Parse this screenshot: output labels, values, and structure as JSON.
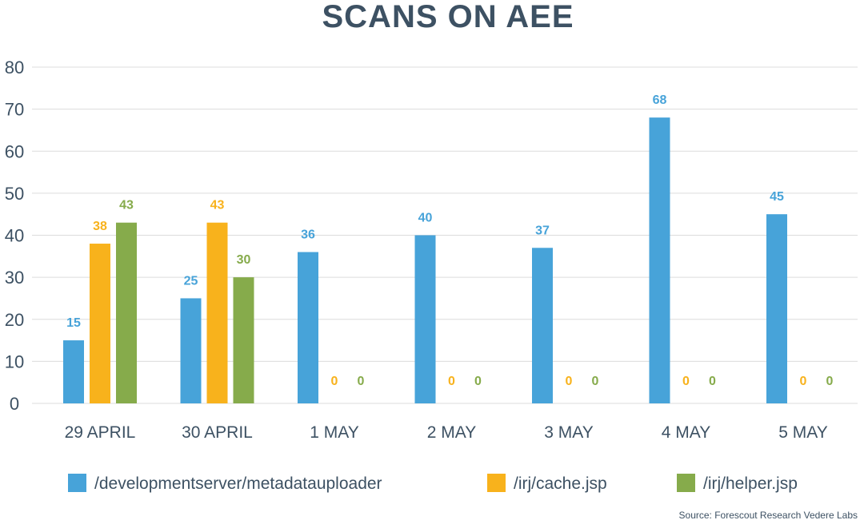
{
  "chart_data": {
    "type": "bar",
    "title": "SCANS ON AEE",
    "categories": [
      "29 APRIL",
      "30 APRIL",
      "1 MAY",
      "2 MAY",
      "3 MAY",
      "4 MAY",
      "5 MAY"
    ],
    "series": [
      {
        "name": "/developmentserver/metadatauploader",
        "color": "#47a3d9",
        "values": [
          15,
          25,
          36,
          40,
          37,
          68,
          45
        ]
      },
      {
        "name": "/irj/cache.jsp",
        "color": "#f8b21c",
        "values": [
          38,
          43,
          0,
          0,
          0,
          0,
          0
        ]
      },
      {
        "name": "/irj/helper.jsp",
        "color": "#86ab4b",
        "values": [
          43,
          30,
          0,
          0,
          0,
          0,
          0
        ]
      }
    ],
    "data_labels": [
      [
        "15",
        "25",
        "36",
        "40",
        "37",
        "68",
        "45"
      ],
      [
        "38",
        "43",
        "0",
        "0",
        "0",
        "0",
        "0"
      ],
      [
        "43",
        "30",
        "0",
        "0",
        "0",
        "0",
        "0"
      ]
    ],
    "yticks": [
      "0",
      "10",
      "20",
      "30",
      "40",
      "50",
      "60",
      "70",
      "80"
    ],
    "ylim": [
      0,
      80
    ],
    "grid": true,
    "legend_position": "bottom",
    "xlabel": "",
    "ylabel": ""
  },
  "source": "Source: Forescout Research Vedere Labs"
}
